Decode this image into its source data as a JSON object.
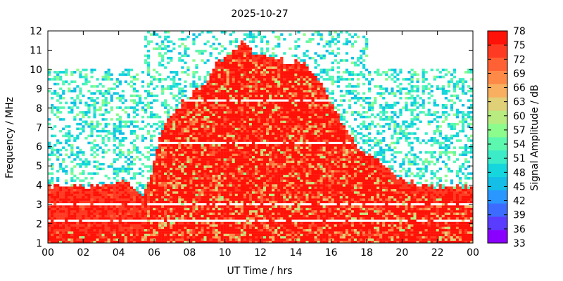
{
  "chart_data": {
    "type": "heatmap",
    "title": "2025-10-27",
    "xlabel": "UT Time / hrs",
    "ylabel": "Frequency / MHz",
    "xlim": [
      0,
      24
    ],
    "ylim": [
      1,
      12
    ],
    "x_ticks": [
      "00",
      "02",
      "04",
      "06",
      "08",
      "10",
      "12",
      "14",
      "16",
      "18",
      "20",
      "22",
      "00"
    ],
    "x_tick_values": [
      0,
      2,
      4,
      6,
      8,
      10,
      12,
      14,
      16,
      18,
      20,
      22,
      24
    ],
    "y_ticks": [
      "1",
      "2",
      "3",
      "4",
      "5",
      "6",
      "7",
      "8",
      "9",
      "10",
      "11",
      "12"
    ],
    "y_tick_values": [
      1,
      2,
      3,
      4,
      5,
      6,
      7,
      8,
      9,
      10,
      11,
      12
    ],
    "colorbar": {
      "label": "Signal Amplitude / dB",
      "range": [
        33,
        78
      ],
      "ticks": [
        "33",
        "36",
        "39",
        "42",
        "45",
        "48",
        "51",
        "54",
        "57",
        "60",
        "63",
        "66",
        "69",
        "72",
        "75",
        "78"
      ],
      "tick_values": [
        33,
        36,
        39,
        42,
        45,
        48,
        51,
        54,
        57,
        60,
        63,
        66,
        69,
        72,
        75,
        78
      ],
      "colors": [
        "#8a00ff",
        "#5a3cff",
        "#3c6cff",
        "#2a96ff",
        "#14bee6",
        "#14d6dc",
        "#3cecc8",
        "#5cf8b0",
        "#8cfc8c",
        "#b8ec80",
        "#e0d078",
        "#f8b060",
        "#ff8a48",
        "#ff6034",
        "#ff3a22",
        "#ff1208"
      ]
    },
    "envelope": {
      "description_hours": [
        0,
        1,
        2,
        3,
        4,
        4.5,
        5,
        5.3,
        5.6,
        6,
        6.5,
        7,
        7.5,
        8,
        8.5,
        9,
        9.5,
        10,
        10.5,
        11,
        11.5,
        12,
        12.5,
        13,
        13.5,
        14,
        14.5,
        15,
        15.5,
        16,
        16.5,
        17,
        17.5,
        18,
        18.5,
        19,
        19.5,
        20,
        21,
        22,
        23,
        24
      ],
      "upper_mhz": [
        4.0,
        3.95,
        3.9,
        4.0,
        4.2,
        4.1,
        3.7,
        3.4,
        3.9,
        5.2,
        7.0,
        7.6,
        8.2,
        8.6,
        9.0,
        9.4,
        10.3,
        10.7,
        11.0,
        11.6,
        11.0,
        10.7,
        10.5,
        10.6,
        10.3,
        10.5,
        10.3,
        9.8,
        9.2,
        8.3,
        7.4,
        6.6,
        6.0,
        5.6,
        5.4,
        5.1,
        4.6,
        4.3,
        4.0,
        3.9,
        3.9,
        3.9
      ],
      "saturated_mhz": [
        1.5,
        1.6,
        1.5,
        1.5,
        1.6,
        1.5,
        1.4,
        1.5,
        2.2,
        4.6,
        6.6,
        7.2,
        7.8,
        8.2,
        8.6,
        9.0,
        9.9,
        10.3,
        10.6,
        11.1,
        10.6,
        10.3,
        10.1,
        10.2,
        9.9,
        10.1,
        9.9,
        9.4,
        8.8,
        7.9,
        7.0,
        6.2,
        5.6,
        5.2,
        4.9,
        4.5,
        4.1,
        3.8,
        3.5,
        3.3,
        3.2,
        3.1
      ],
      "peak_value_db": 78
    },
    "background_noise": {
      "freq_range_mhz": [
        4.0,
        10.0
      ],
      "daytime_extension_hours": [
        5.5,
        18.0
      ],
      "daytime_top_mhz": 12.0,
      "typical_db": [
        45,
        57
      ]
    },
    "gaps_mhz": [
      2.15,
      6.25,
      8.35,
      3.0
    ],
    "grid": false,
    "legend": "colorbar-right"
  }
}
